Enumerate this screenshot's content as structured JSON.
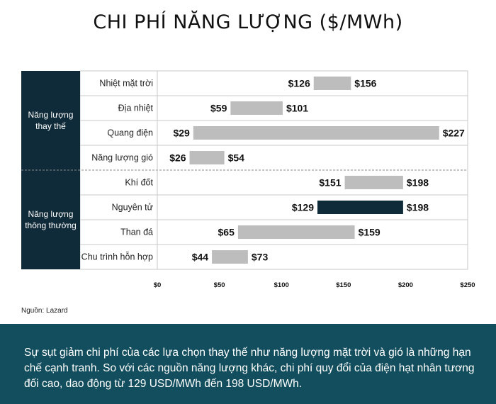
{
  "title": "CHI PHÍ NĂNG LƯỢNG ($/MWh)",
  "source": "Nguồn: Lazard",
  "footer_text": "Sự sụt giảm chi phí của các lựa chọn thay thế như năng lượng mặt trời và gió là những hạn chế cạnh tranh. So với các nguồn năng lượng khác, chi phí quy đổi của điện hạt nhân tương đối cao, dao động từ 129 USD/MWh đến 198 USD/MWh.",
  "colors": {
    "dark": "#0f2a38",
    "bar": "#bdbdbd",
    "highlight": "#0f2a38",
    "footer_bg": "#134e5e"
  },
  "chart_data": {
    "type": "bar",
    "orientation": "horizontal-range",
    "xlim": [
      0,
      250
    ],
    "xticks": [
      0,
      50,
      100,
      150,
      200,
      250
    ],
    "xtick_labels": [
      "$0",
      "$50",
      "$100",
      "$150",
      "$200",
      "$250"
    ],
    "groups": [
      {
        "label": "Năng lượng thay thế",
        "items": [
          {
            "name": "Nhiệt mặt trời",
            "low": 126,
            "high": 156,
            "low_label": "$126",
            "high_label": "$156",
            "highlight": false
          },
          {
            "name": "Địa nhiệt",
            "low": 59,
            "high": 101,
            "low_label": "$59",
            "high_label": "$101",
            "highlight": false
          },
          {
            "name": "Quang điện",
            "low": 29,
            "high": 227,
            "low_label": "$29",
            "high_label": "$227",
            "highlight": false
          },
          {
            "name": "Năng lượng gió",
            "low": 26,
            "high": 54,
            "low_label": "$26",
            "high_label": "$54",
            "highlight": false
          }
        ]
      },
      {
        "label": "Năng lượng thông thường",
        "items": [
          {
            "name": "Khí đốt",
            "low": 151,
            "high": 198,
            "low_label": "$151",
            "high_label": "$198",
            "highlight": false
          },
          {
            "name": "Nguyên tử",
            "low": 129,
            "high": 198,
            "low_label": "$129",
            "high_label": "$198",
            "highlight": true
          },
          {
            "name": "Than đá",
            "low": 65,
            "high": 159,
            "low_label": "$65",
            "high_label": "$159",
            "highlight": false
          },
          {
            "name": "Chu trình hỗn hợp",
            "low": 44,
            "high": 73,
            "low_label": "$44",
            "high_label": "$73",
            "highlight": false
          }
        ]
      }
    ]
  }
}
